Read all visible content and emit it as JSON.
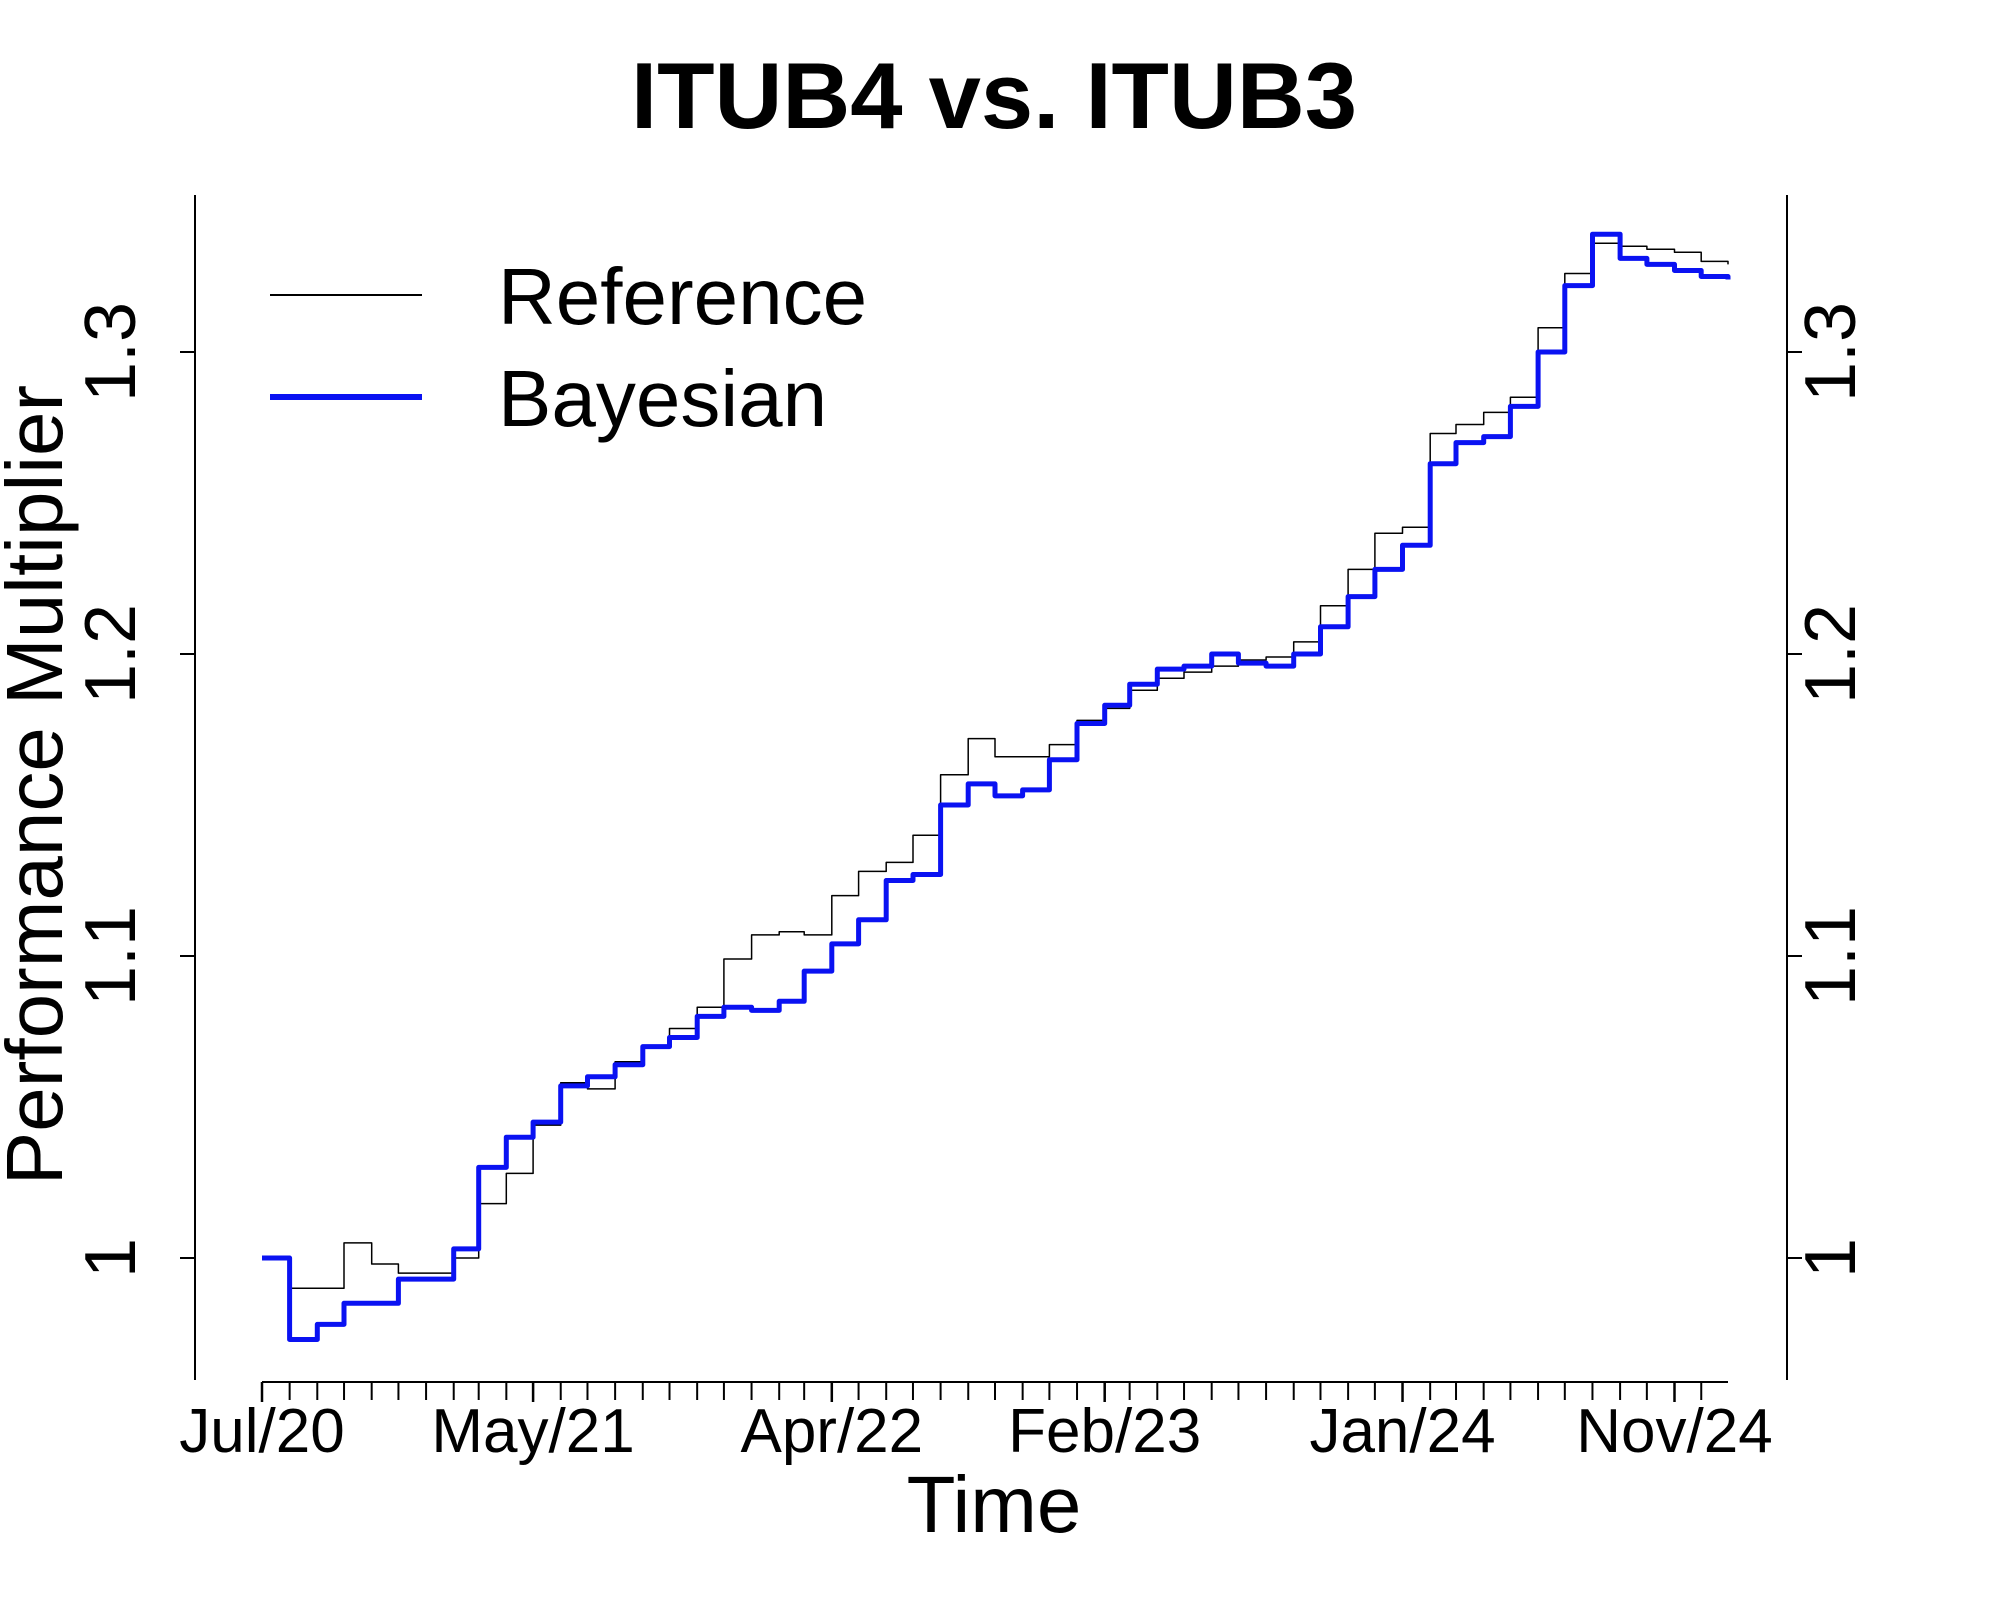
{
  "chart_data": {
    "type": "line",
    "title": "ITUB4 vs. ITUB3",
    "xlabel": "Time",
    "ylabel": "Performance Multiplier",
    "ylim": [
      0.96,
      1.35
    ],
    "yticks": [
      1,
      1.1,
      1.2,
      1.3
    ],
    "ytick_labels": [
      "1",
      "1.1",
      "1.2",
      "1.3"
    ],
    "xlim": [
      "2020-07-01",
      "2024-12-31"
    ],
    "x_tick_labels": [
      {
        "date": "2020-07-01",
        "label": "Jul/20"
      },
      {
        "date": "2021-05-01",
        "label": "May/21"
      },
      {
        "date": "2022-04-01",
        "label": "Apr/22"
      },
      {
        "date": "2023-02-01",
        "label": "Feb/23"
      },
      {
        "date": "2024-01-01",
        "label": "Jan/24"
      },
      {
        "date": "2024-11-01",
        "label": "Nov/24"
      }
    ],
    "legend": {
      "position": "top-left"
    },
    "grid": false,
    "series": [
      {
        "name": "Reference",
        "color": "#000000",
        "x": [
          "2020-07-01",
          "2020-08-01",
          "2020-09-01",
          "2020-10-01",
          "2020-11-01",
          "2020-12-01",
          "2021-01-01",
          "2021-02-01",
          "2021-03-01",
          "2021-04-01",
          "2021-05-01",
          "2021-06-01",
          "2021-07-01",
          "2021-08-01",
          "2021-09-01",
          "2021-10-01",
          "2021-11-01",
          "2021-12-01",
          "2022-01-01",
          "2022-02-01",
          "2022-03-01",
          "2022-04-01",
          "2022-05-01",
          "2022-06-01",
          "2022-07-01",
          "2022-08-01",
          "2022-09-01",
          "2022-10-01",
          "2022-11-01",
          "2022-12-01",
          "2023-01-01",
          "2023-02-01",
          "2023-03-01",
          "2023-04-01",
          "2023-05-01",
          "2023-06-01",
          "2023-07-01",
          "2023-08-01",
          "2023-09-01",
          "2023-10-01",
          "2023-11-01",
          "2023-12-01",
          "2024-01-01",
          "2024-02-01",
          "2024-03-01",
          "2024-04-01",
          "2024-05-01",
          "2024-06-01",
          "2024-07-01",
          "2024-08-01",
          "2024-09-01",
          "2024-10-01",
          "2024-11-01",
          "2024-12-01",
          "2024-12-31"
        ],
        "y": [
          1.0,
          0.99,
          0.99,
          1.005,
          0.998,
          0.995,
          0.995,
          1.0,
          1.018,
          1.028,
          1.044,
          1.058,
          1.056,
          1.065,
          1.07,
          1.076,
          1.083,
          1.099,
          1.107,
          1.108,
          1.107,
          1.12,
          1.128,
          1.131,
          1.14,
          1.16,
          1.172,
          1.166,
          1.166,
          1.17,
          1.178,
          1.182,
          1.188,
          1.192,
          1.194,
          1.196,
          1.198,
          1.199,
          1.204,
          1.216,
          1.228,
          1.24,
          1.242,
          1.273,
          1.276,
          1.28,
          1.285,
          1.308,
          1.326,
          1.336,
          1.335,
          1.334,
          1.333,
          1.33,
          1.329
        ]
      },
      {
        "name": "Bayesian",
        "color": "#0a12f2",
        "x": [
          "2020-07-01",
          "2020-08-01",
          "2020-09-01",
          "2020-10-01",
          "2020-11-01",
          "2020-12-01",
          "2021-01-01",
          "2021-02-01",
          "2021-03-01",
          "2021-04-01",
          "2021-05-01",
          "2021-06-01",
          "2021-07-01",
          "2021-08-01",
          "2021-09-01",
          "2021-10-01",
          "2021-11-01",
          "2021-12-01",
          "2022-01-01",
          "2022-02-01",
          "2022-03-01",
          "2022-04-01",
          "2022-05-01",
          "2022-06-01",
          "2022-07-01",
          "2022-08-01",
          "2022-09-01",
          "2022-10-01",
          "2022-11-01",
          "2022-12-01",
          "2023-01-01",
          "2023-02-01",
          "2023-03-01",
          "2023-04-01",
          "2023-05-01",
          "2023-06-01",
          "2023-07-01",
          "2023-08-01",
          "2023-09-01",
          "2023-10-01",
          "2023-11-01",
          "2023-12-01",
          "2024-01-01",
          "2024-02-01",
          "2024-03-01",
          "2024-04-01",
          "2024-05-01",
          "2024-06-01",
          "2024-07-01",
          "2024-08-01",
          "2024-09-01",
          "2024-10-01",
          "2024-11-01",
          "2024-12-01",
          "2024-12-31"
        ],
        "y": [
          1.0,
          0.973,
          0.978,
          0.985,
          0.985,
          0.993,
          0.993,
          1.003,
          1.03,
          1.04,
          1.045,
          1.057,
          1.06,
          1.064,
          1.07,
          1.073,
          1.08,
          1.083,
          1.082,
          1.085,
          1.095,
          1.104,
          1.112,
          1.125,
          1.127,
          1.15,
          1.157,
          1.153,
          1.155,
          1.165,
          1.177,
          1.183,
          1.19,
          1.195,
          1.196,
          1.2,
          1.197,
          1.196,
          1.2,
          1.209,
          1.219,
          1.228,
          1.236,
          1.263,
          1.27,
          1.272,
          1.282,
          1.3,
          1.322,
          1.339,
          1.331,
          1.329,
          1.327,
          1.325,
          1.324
        ]
      }
    ]
  }
}
